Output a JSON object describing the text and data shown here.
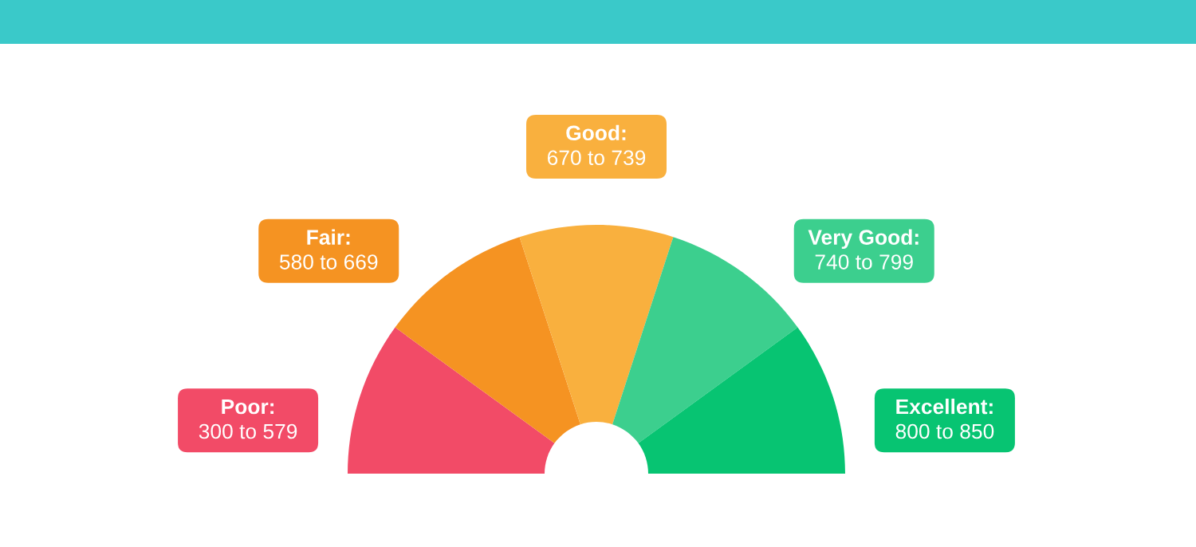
{
  "chart_data": {
    "type": "donut",
    "categories": [
      "Poor:\n300 to 579",
      "Fair:\n580 to 669",
      "Good:\n670 to 739",
      "Very Good:\n740 to 799",
      "Excellent:\n800 to 850"
    ],
    "values": [
      20,
      20,
      20,
      20,
      20
    ],
    "colors": [
      "#f24b67",
      "#f59322",
      "#f9b03e",
      "#3ccf8e",
      "#07c472"
    ]
  }
}
